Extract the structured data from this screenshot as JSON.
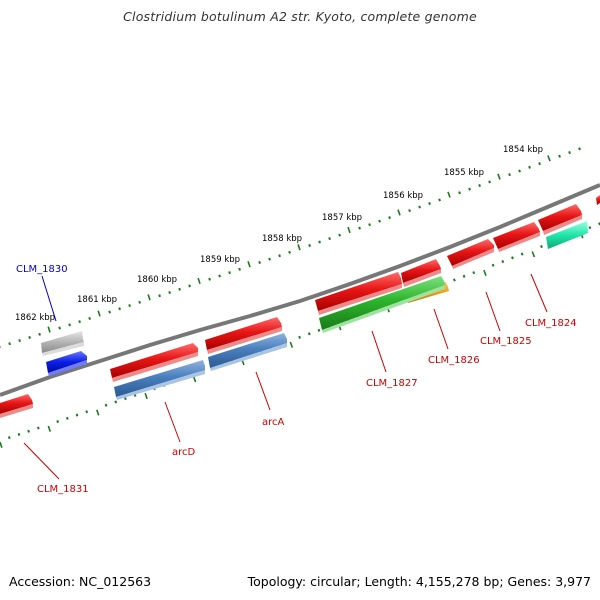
{
  "title": "Clostridium botulinum A2 str. Kyoto, complete genome",
  "footer": {
    "accession": "Accession: NC_012563",
    "summary": "Topology: circular; Length: 4,155,278 bp; Genes: 3,977"
  },
  "colors": {
    "backbone": "#777777",
    "tick": "#1f7a1f",
    "gene_red": "#e21212",
    "gene_steel": "#4a7fbf",
    "gene_green": "#2db52d",
    "gene_orange": "#f39c12",
    "gene_cyan": "#20e6a8",
    "gene_gray": "#b5b5b5",
    "gene_blue": "#0b1ee6",
    "label_red": "#cc0000",
    "label_blue": "#0000cc"
  },
  "axis_ticks": [
    {
      "label": "1854 kbp"
    },
    {
      "label": "1855 kbp"
    },
    {
      "label": "1856 kbp"
    },
    {
      "label": "1857 kbp"
    },
    {
      "label": "1858 kbp"
    },
    {
      "label": "1859 kbp"
    },
    {
      "label": "1860 kbp"
    },
    {
      "label": "1861 kbp"
    },
    {
      "label": "1862 kbp"
    }
  ],
  "features": [
    {
      "name": "CLM_1824",
      "label": "CLM_1824"
    },
    {
      "name": "CLM_1825",
      "label": "CLM_1825"
    },
    {
      "name": "CLM_1826",
      "label": "CLM_1826"
    },
    {
      "name": "CLM_1827",
      "label": "CLM_1827"
    },
    {
      "name": "arcA",
      "label": "arcA"
    },
    {
      "name": "arcD",
      "label": "arcD"
    },
    {
      "name": "CLM_1830",
      "label": "CLM_1830"
    },
    {
      "name": "CLM_1831",
      "label": "CLM_1831"
    }
  ]
}
